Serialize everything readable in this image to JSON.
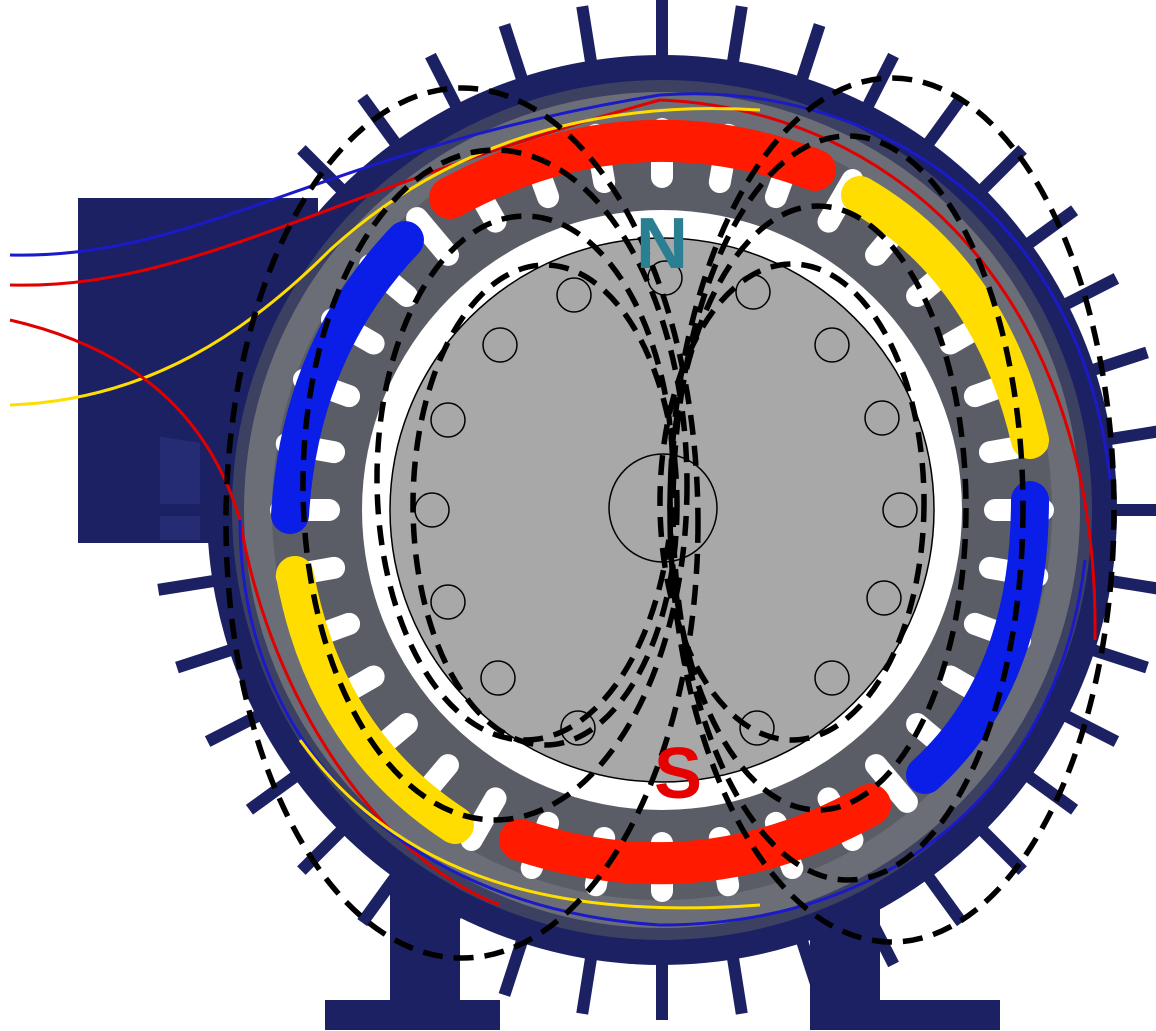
{
  "labels": {
    "north": "N",
    "south": "S"
  },
  "colors": {
    "frame": "#1b2163",
    "stator": "#5a5d66",
    "stator_core": "#7b7e86",
    "rotor": "#a8a8a8",
    "background": "#ffffff",
    "phase_red": "#ff1a00",
    "phase_blue": "#0b1ee8",
    "phase_yellow": "#ffdd00",
    "north_label": "#2a7f92",
    "south_label": "#e60000",
    "flux_lines": "#000000"
  },
  "icons": {
    "cooling_fins": "fin-icon",
    "terminal_box": "terminal-box-icon",
    "rotor_bars": "rotor-bar-icon",
    "shaft": "shaft-icon"
  }
}
